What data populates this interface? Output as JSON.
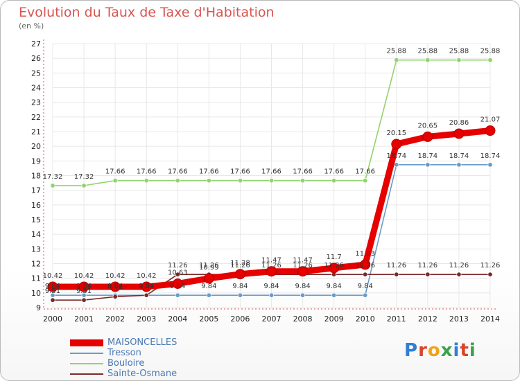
{
  "header": {
    "title": "Evolution du Taux de Taxe d'Habitation",
    "subtitle": "(en %)"
  },
  "logo": {
    "text": "Proxiti",
    "colors": [
      "#2f7fd4",
      "#d9452b",
      "#f0a21c",
      "#3aa34a",
      "#2f7fd4",
      "#d9452b",
      "#3aa34a"
    ]
  },
  "colors": {
    "MAISONCELLES": "#e60000",
    "Tresson": "#6a9bc9",
    "Bouloire": "#92d36b",
    "Sainte-Osmane": "#7a2a2a",
    "grid": "#e8e8e8",
    "axis": "#d05050"
  },
  "chart_data": {
    "type": "line",
    "title": "Evolution du Taux de Taxe d'Habitation",
    "subtitle": "(en %)",
    "xlabel": "",
    "ylabel": "",
    "x": [
      2000,
      2001,
      2002,
      2003,
      2004,
      2005,
      2006,
      2007,
      2008,
      2009,
      2010,
      2011,
      2012,
      2013,
      2014
    ],
    "ylim": [
      9,
      27
    ],
    "yticks": [
      9,
      10,
      11,
      12,
      13,
      14,
      15,
      16,
      17,
      18,
      19,
      20,
      21,
      22,
      23,
      24,
      25,
      26,
      27
    ],
    "grid": true,
    "legend": "bottom-left",
    "series": [
      {
        "name": "MAISONCELLES",
        "values": [
          10.42,
          10.42,
          10.42,
          10.42,
          10.63,
          10.99,
          11.28,
          11.47,
          11.47,
          11.7,
          11.93,
          20.15,
          20.65,
          20.86,
          21.07
        ]
      },
      {
        "name": "Tresson",
        "values": [
          9.84,
          9.84,
          9.84,
          9.84,
          9.84,
          9.84,
          9.84,
          9.84,
          9.84,
          9.84,
          9.84,
          18.74,
          18.74,
          18.74,
          18.74
        ]
      },
      {
        "name": "Bouloire",
        "values": [
          17.32,
          17.32,
          17.66,
          17.66,
          17.66,
          17.66,
          17.66,
          17.66,
          17.66,
          17.66,
          17.66,
          25.88,
          25.88,
          25.88,
          25.88
        ]
      },
      {
        "name": "Sainte-Osmane",
        "values": [
          9.51,
          9.51,
          9.74,
          9.84,
          11.26,
          11.26,
          11.26,
          11.26,
          11.26,
          11.26,
          11.26,
          11.26,
          11.26,
          11.26,
          11.26
        ]
      }
    ]
  }
}
